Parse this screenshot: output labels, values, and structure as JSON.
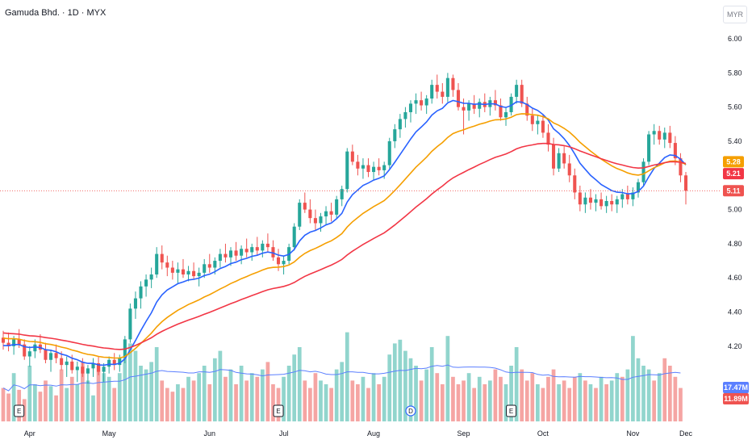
{
  "title": "Gamuda Bhd. · 1D · MYX",
  "currency": "MYR",
  "colors": {
    "up": "#26a69a",
    "down": "#ef5350",
    "up_volume": "#91d5cd",
    "down_volume": "#f5a5a3",
    "ma_fast": "#2962ff",
    "ma_mid": "#f59f00",
    "ma_slow": "#f23645",
    "volume_ma": "#5b7fff"
  },
  "chart_data": {
    "type": "candlestick",
    "title": "Gamuda Bhd. · 1D · MYX",
    "y_ticks": [
      "6.00",
      "5.80",
      "5.60",
      "5.40",
      "5.20",
      "5.00",
      "4.80",
      "4.60",
      "4.40",
      "4.20"
    ],
    "ylim": [
      4.1,
      6.0
    ],
    "x_ticks": [
      "Apr",
      "May",
      "Jun",
      "Jul",
      "Aug",
      "Sep",
      "Oct",
      "Nov",
      "Dec"
    ],
    "grid": false,
    "price_badges": [
      {
        "label": "5.28",
        "series": "ma_mid"
      },
      {
        "label": "5.21",
        "series": "ma_slow"
      },
      {
        "label": "5.11",
        "series": "last_price"
      }
    ],
    "volume_badges": [
      {
        "label": "17.47M",
        "series": "volume_ma"
      },
      {
        "label": "11.89M",
        "series": "last_volume"
      }
    ],
    "events": [
      {
        "label": "E",
        "month": "Apr"
      },
      {
        "label": "E",
        "month": "Jul"
      },
      {
        "label": "D",
        "month": "Aug"
      },
      {
        "label": "E",
        "month": "Sep"
      }
    ],
    "candles": [
      [
        4.25,
        4.29,
        4.18,
        4.22
      ],
      [
        4.22,
        4.28,
        4.17,
        4.2
      ],
      [
        4.2,
        4.26,
        4.15,
        4.24
      ],
      [
        4.24,
        4.3,
        4.19,
        4.21
      ],
      [
        4.21,
        4.24,
        4.12,
        4.14
      ],
      [
        4.14,
        4.2,
        4.08,
        4.17
      ],
      [
        4.17,
        4.24,
        4.13,
        4.21
      ],
      [
        4.21,
        4.27,
        4.16,
        4.18
      ],
      [
        4.18,
        4.22,
        4.1,
        4.12
      ],
      [
        4.12,
        4.18,
        4.05,
        4.16
      ],
      [
        4.16,
        4.21,
        4.1,
        4.13
      ],
      [
        4.13,
        4.17,
        4.06,
        4.09
      ],
      [
        4.09,
        4.14,
        4.02,
        4.11
      ],
      [
        4.11,
        4.15,
        4.04,
        4.06
      ],
      [
        4.06,
        4.11,
        3.99,
        4.08
      ],
      [
        4.08,
        4.13,
        4.02,
        4.04
      ],
      [
        4.04,
        4.09,
        3.98,
        4.07
      ],
      [
        4.07,
        4.13,
        4.02,
        4.1
      ],
      [
        4.1,
        4.14,
        4.03,
        4.05
      ],
      [
        4.05,
        4.1,
        3.99,
        4.08
      ],
      [
        4.08,
        4.14,
        4.04,
        4.12
      ],
      [
        4.12,
        4.16,
        4.06,
        4.09
      ],
      [
        4.09,
        4.15,
        4.05,
        4.13
      ],
      [
        4.13,
        4.26,
        4.1,
        4.24
      ],
      [
        4.24,
        4.45,
        4.22,
        4.42
      ],
      [
        4.42,
        4.52,
        4.36,
        4.48
      ],
      [
        4.48,
        4.58,
        4.42,
        4.55
      ],
      [
        4.55,
        4.62,
        4.49,
        4.59
      ],
      [
        4.59,
        4.66,
        4.54,
        4.62
      ],
      [
        4.62,
        4.78,
        4.6,
        4.74
      ],
      [
        4.74,
        4.79,
        4.65,
        4.69
      ],
      [
        4.69,
        4.73,
        4.61,
        4.66
      ],
      [
        4.66,
        4.7,
        4.59,
        4.63
      ],
      [
        4.63,
        4.69,
        4.57,
        4.65
      ],
      [
        4.65,
        4.71,
        4.6,
        4.62
      ],
      [
        4.62,
        4.67,
        4.58,
        4.64
      ],
      [
        4.64,
        4.69,
        4.59,
        4.61
      ],
      [
        4.61,
        4.66,
        4.55,
        4.63
      ],
      [
        4.63,
        4.71,
        4.6,
        4.68
      ],
      [
        4.68,
        4.74,
        4.63,
        4.66
      ],
      [
        4.66,
        4.72,
        4.62,
        4.7
      ],
      [
        4.7,
        4.77,
        4.66,
        4.74
      ],
      [
        4.74,
        4.8,
        4.69,
        4.72
      ],
      [
        4.72,
        4.78,
        4.67,
        4.76
      ],
      [
        4.76,
        4.81,
        4.7,
        4.73
      ],
      [
        4.73,
        4.79,
        4.68,
        4.77
      ],
      [
        4.77,
        4.83,
        4.72,
        4.75
      ],
      [
        4.75,
        4.8,
        4.7,
        4.78
      ],
      [
        4.78,
        4.84,
        4.73,
        4.76
      ],
      [
        4.76,
        4.82,
        4.72,
        4.8
      ],
      [
        4.8,
        4.86,
        4.75,
        4.78
      ],
      [
        4.78,
        4.82,
        4.7,
        4.72
      ],
      [
        4.72,
        4.77,
        4.64,
        4.68
      ],
      [
        4.68,
        4.73,
        4.62,
        4.7
      ],
      [
        4.7,
        4.8,
        4.68,
        4.78
      ],
      [
        4.78,
        4.92,
        4.76,
        4.9
      ],
      [
        4.9,
        5.06,
        4.88,
        5.04
      ],
      [
        5.04,
        5.1,
        4.98,
        5.0
      ],
      [
        5.0,
        5.06,
        4.92,
        4.95
      ],
      [
        4.95,
        5.0,
        4.88,
        4.92
      ],
      [
        4.92,
        4.98,
        4.87,
        4.96
      ],
      [
        4.96,
        5.02,
        4.91,
        4.99
      ],
      [
        4.99,
        5.04,
        4.93,
        4.97
      ],
      [
        4.97,
        5.08,
        4.95,
        5.06
      ],
      [
        5.06,
        5.14,
        5.02,
        5.12
      ],
      [
        5.12,
        5.36,
        5.1,
        5.34
      ],
      [
        5.34,
        5.38,
        5.26,
        5.28
      ],
      [
        5.28,
        5.32,
        5.2,
        5.24
      ],
      [
        5.24,
        5.3,
        5.18,
        5.26
      ],
      [
        5.26,
        5.3,
        5.19,
        5.22
      ],
      [
        5.22,
        5.28,
        5.17,
        5.25
      ],
      [
        5.25,
        5.3,
        5.2,
        5.23
      ],
      [
        5.23,
        5.28,
        5.18,
        5.26
      ],
      [
        5.26,
        5.42,
        5.24,
        5.4
      ],
      [
        5.4,
        5.5,
        5.36,
        5.47
      ],
      [
        5.47,
        5.56,
        5.42,
        5.53
      ],
      [
        5.53,
        5.6,
        5.48,
        5.57
      ],
      [
        5.57,
        5.64,
        5.51,
        5.62
      ],
      [
        5.62,
        5.68,
        5.56,
        5.64
      ],
      [
        5.64,
        5.69,
        5.58,
        5.61
      ],
      [
        5.61,
        5.67,
        5.56,
        5.65
      ],
      [
        5.65,
        5.76,
        5.62,
        5.73
      ],
      [
        5.73,
        5.79,
        5.65,
        5.69
      ],
      [
        5.69,
        5.74,
        5.62,
        5.66
      ],
      [
        5.66,
        5.8,
        5.63,
        5.77
      ],
      [
        5.77,
        5.79,
        5.66,
        5.7
      ],
      [
        5.7,
        5.74,
        5.58,
        5.6
      ],
      [
        5.6,
        5.65,
        5.44,
        5.58
      ],
      [
        5.58,
        5.64,
        5.52,
        5.62
      ],
      [
        5.62,
        5.67,
        5.56,
        5.59
      ],
      [
        5.59,
        5.65,
        5.54,
        5.63
      ],
      [
        5.63,
        5.68,
        5.57,
        5.6
      ],
      [
        5.6,
        5.66,
        5.55,
        5.64
      ],
      [
        5.64,
        5.7,
        5.58,
        5.61
      ],
      [
        5.61,
        5.65,
        5.52,
        5.54
      ],
      [
        5.54,
        5.6,
        5.49,
        5.57
      ],
      [
        5.57,
        5.68,
        5.55,
        5.66
      ],
      [
        5.66,
        5.76,
        5.62,
        5.73
      ],
      [
        5.73,
        5.76,
        5.6,
        5.62
      ],
      [
        5.62,
        5.66,
        5.52,
        5.55
      ],
      [
        5.55,
        5.59,
        5.46,
        5.5
      ],
      [
        5.5,
        5.55,
        5.44,
        5.52
      ],
      [
        5.52,
        5.56,
        5.42,
        5.45
      ],
      [
        5.45,
        5.5,
        5.34,
        5.38
      ],
      [
        5.38,
        5.42,
        5.2,
        5.24
      ],
      [
        5.24,
        5.36,
        5.22,
        5.33
      ],
      [
        5.33,
        5.37,
        5.24,
        5.27
      ],
      [
        5.27,
        5.32,
        5.16,
        5.2
      ],
      [
        5.2,
        5.24,
        5.06,
        5.1
      ],
      [
        5.1,
        5.14,
        4.99,
        5.03
      ],
      [
        5.03,
        5.1,
        4.98,
        5.07
      ],
      [
        5.07,
        5.12,
        5.0,
        5.04
      ],
      [
        5.04,
        5.09,
        4.99,
        5.06
      ],
      [
        5.06,
        5.1,
        5.0,
        5.02
      ],
      [
        5.02,
        5.08,
        4.98,
        5.05
      ],
      [
        5.05,
        5.09,
        4.99,
        5.03
      ],
      [
        5.03,
        5.08,
        4.98,
        5.06
      ],
      [
        5.06,
        5.12,
        5.01,
        5.09
      ],
      [
        5.09,
        5.14,
        5.03,
        5.06
      ],
      [
        5.06,
        5.13,
        5.02,
        5.1
      ],
      [
        5.1,
        5.18,
        5.07,
        5.16
      ],
      [
        5.16,
        5.3,
        5.14,
        5.28
      ],
      [
        5.28,
        5.46,
        5.26,
        5.44
      ],
      [
        5.44,
        5.5,
        5.38,
        5.46
      ],
      [
        5.46,
        5.49,
        5.38,
        5.41
      ],
      [
        5.41,
        5.48,
        5.36,
        5.45
      ],
      [
        5.45,
        5.49,
        5.36,
        5.39
      ],
      [
        5.39,
        5.43,
        5.26,
        5.3
      ],
      [
        5.3,
        5.33,
        5.16,
        5.2
      ],
      [
        5.2,
        5.22,
        5.03,
        5.11
      ]
    ],
    "vol_up": [
      false,
      false,
      true,
      false,
      false,
      true,
      true,
      false,
      false,
      true,
      false,
      false,
      true,
      false,
      true,
      false,
      true,
      true,
      false,
      true,
      true,
      false,
      true,
      true,
      true,
      true,
      true,
      true,
      true,
      true,
      false,
      false,
      false,
      true,
      false,
      true,
      false,
      true,
      true,
      false,
      true,
      true,
      false,
      true,
      false,
      true,
      false,
      true,
      false,
      true,
      false,
      false,
      false,
      true,
      true,
      true,
      true,
      false,
      false,
      false,
      true,
      true,
      false,
      true,
      true,
      true,
      false,
      false,
      true,
      false,
      true,
      false,
      true,
      true,
      true,
      true,
      true,
      true,
      true,
      false,
      true,
      true,
      false,
      false,
      true,
      false,
      false,
      false,
      true,
      false,
      true,
      false,
      true,
      false,
      false,
      true,
      true,
      true,
      false,
      false,
      false,
      true,
      false,
      false,
      false,
      true,
      false,
      false,
      false,
      true,
      false,
      true,
      false,
      true,
      false,
      true,
      true,
      false,
      true,
      true,
      true,
      true,
      true,
      false,
      true,
      false,
      false,
      false,
      false
    ],
    "volumes": [
      18,
      15,
      26,
      17,
      12,
      30,
      20,
      16,
      22,
      19,
      14,
      28,
      18,
      24,
      20,
      32,
      22,
      14,
      30,
      26,
      24,
      18,
      26,
      34,
      42,
      38,
      30,
      28,
      32,
      40,
      22,
      18,
      16,
      20,
      18,
      24,
      22,
      26,
      30,
      20,
      34,
      38,
      24,
      28,
      20,
      30,
      22,
      26,
      24,
      28,
      32,
      20,
      18,
      24,
      30,
      36,
      40,
      22,
      18,
      26,
      22,
      20,
      18,
      28,
      32,
      48,
      22,
      20,
      24,
      18,
      26,
      20,
      24,
      36,
      42,
      44,
      38,
      34,
      30,
      22,
      28,
      40,
      26,
      20,
      46,
      24,
      20,
      22,
      26,
      18,
      24,
      20,
      22,
      28,
      24,
      20,
      30,
      40,
      28,
      22,
      26,
      20,
      18,
      24,
      28,
      20,
      22,
      18,
      24,
      26,
      22,
      20,
      18,
      24,
      20,
      22,
      26,
      24,
      28,
      46,
      34,
      30,
      28,
      22,
      26,
      34,
      30,
      24,
      18
    ]
  }
}
